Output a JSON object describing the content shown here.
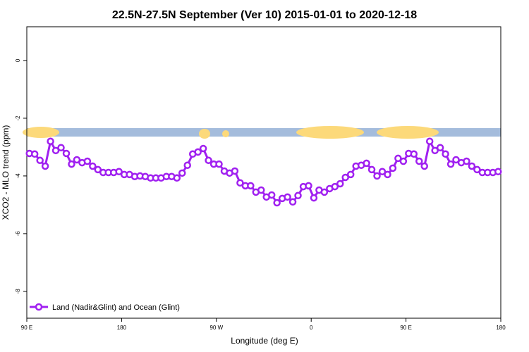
{
  "chart_data": {
    "type": "line",
    "title": "22.5N-27.5N September (Ver 10)   2015-01-01 to 2020-12-18",
    "x_label": "Longitude (deg E)",
    "y_label": "XCO2 - MLO trend (ppm)",
    "xlim": [
      90,
      540
    ],
    "ylim": [
      -8.93,
      1.17
    ],
    "xticks": [
      {
        "value": 90,
        "label": "90 E"
      },
      {
        "value": 180,
        "label": "180"
      },
      {
        "value": 270,
        "label": "90 W"
      },
      {
        "value": 360,
        "label": "0"
      },
      {
        "value": 450,
        "label": "90 E"
      },
      {
        "value": 540,
        "label": "180"
      }
    ],
    "yticks": [
      0,
      -2,
      -4,
      -6,
      -8
    ],
    "legend": "bottom-left",
    "x": [
      92.5,
      97.5,
      102.5,
      107.5,
      112.5,
      117.5,
      122.5,
      127.5,
      132.5,
      137.5,
      142.5,
      147.5,
      152.5,
      157.5,
      162.5,
      167.5,
      172.5,
      177.5,
      182.5,
      187.5,
      192.5,
      197.5,
      202.5,
      207.5,
      212.5,
      217.5,
      222.5,
      227.5,
      232.5,
      237.5,
      242.5,
      247.5,
      252.5,
      257.5,
      262.5,
      267.5,
      272.5,
      277.5,
      282.5,
      287.5,
      292.5,
      297.5,
      302.5,
      307.5,
      312.5,
      317.5,
      322.5,
      327.5,
      332.5,
      337.5,
      342.5,
      347.5,
      352.5,
      357.5,
      362.5,
      367.5,
      372.5,
      377.5,
      382.5,
      387.5,
      392.5,
      397.5,
      402.5,
      407.5,
      412.5,
      417.5,
      422.5,
      427.5,
      432.5,
      437.5,
      442.5,
      447.5,
      452.5,
      457.5,
      462.5,
      467.5,
      472.5,
      477.5,
      482.5,
      487.5,
      492.5,
      497.5,
      502.5,
      507.5,
      512.5,
      517.5,
      522.5,
      527.5,
      532.5,
      537.5
    ],
    "series": [
      {
        "name": "Land (Nadir&Glint) and Ocean (Glint)",
        "color": "#a020f0",
        "values": [
          -3.22,
          -3.24,
          -3.46,
          -3.66,
          -2.8,
          -3.12,
          -3.02,
          -3.22,
          -3.59,
          -3.44,
          -3.54,
          -3.49,
          -3.66,
          -3.78,
          -3.88,
          -3.88,
          -3.88,
          -3.85,
          -3.95,
          -3.95,
          -4.02,
          -4.0,
          -4.02,
          -4.07,
          -4.07,
          -4.07,
          -4.02,
          -4.02,
          -4.07,
          -3.9,
          -3.63,
          -3.24,
          -3.17,
          -3.05,
          -3.46,
          -3.59,
          -3.59,
          -3.83,
          -3.9,
          -3.83,
          -4.24,
          -4.34,
          -4.34,
          -4.56,
          -4.49,
          -4.73,
          -4.66,
          -4.93,
          -4.78,
          -4.73,
          -4.9,
          -4.68,
          -4.37,
          -4.34,
          -4.76,
          -4.49,
          -4.56,
          -4.44,
          -4.37,
          -4.27,
          -4.05,
          -3.95,
          -3.66,
          -3.63,
          -3.56,
          -3.78,
          -4.0,
          -3.85,
          -3.95,
          -3.73,
          -3.39,
          -3.49,
          -3.22,
          -3.24,
          -3.49,
          -3.66,
          -2.8,
          -3.12,
          -3.02,
          -3.24,
          -3.59,
          -3.44,
          -3.54,
          -3.49,
          -3.66,
          -3.78,
          -3.88,
          -3.88,
          -3.88,
          -3.85
        ]
      }
    ]
  }
}
